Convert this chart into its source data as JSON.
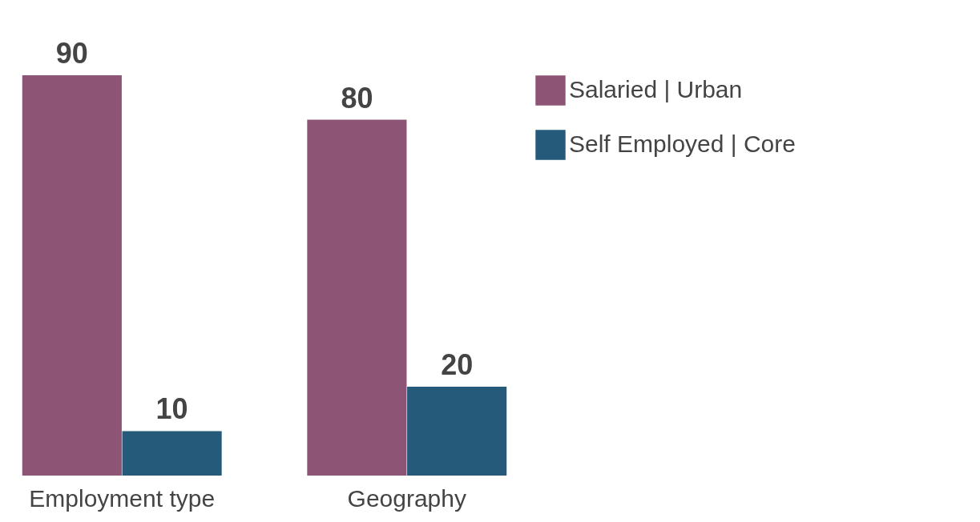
{
  "chart_data": {
    "type": "bar",
    "categories": [
      "Employment type",
      "Geography"
    ],
    "series": [
      {
        "name": "Salaried | Urban",
        "color": "#8e5475",
        "values": [
          90,
          80
        ]
      },
      {
        "name": "Self Employed | Core",
        "color": "#255a7b",
        "values": [
          10,
          20
        ]
      }
    ],
    "data_labels": true,
    "legend": "right"
  }
}
